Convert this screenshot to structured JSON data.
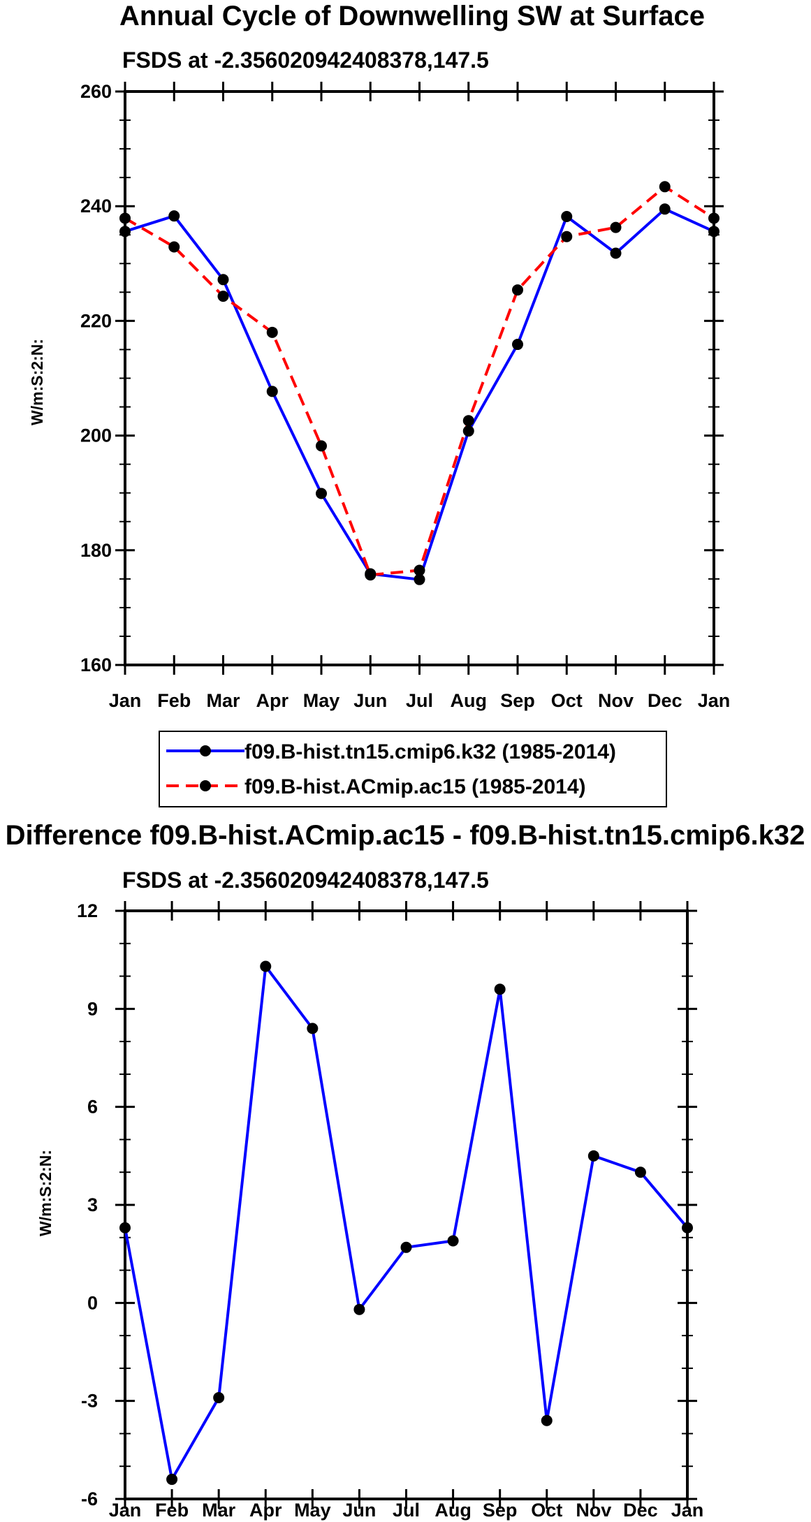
{
  "chart_data": [
    {
      "type": "line",
      "title": "Annual Cycle of Downwelling SW at Surface",
      "subtitle": "FSDS at -2.356020942408378,147.5",
      "ylabel": "W/m:S:2:N:",
      "xlabel": "",
      "categories": [
        "Jan",
        "Feb",
        "Mar",
        "Apr",
        "May",
        "Jun",
        "Jul",
        "Aug",
        "Sep",
        "Oct",
        "Nov",
        "Dec",
        "Jan"
      ],
      "y_ticks": [
        "160",
        "180",
        "200",
        "220",
        "240",
        "260"
      ],
      "ylim": [
        160,
        260
      ],
      "series": [
        {
          "name": "f09.B-hist.tn15.cmip6.k32 (1985-2014)",
          "color": "#0000ff",
          "dash": "solid",
          "values": [
            235.6,
            238.3,
            227.2,
            207.7,
            189.9,
            175.9,
            174.9,
            200.8,
            215.9,
            238.2,
            231.8,
            239.5,
            235.6
          ]
        },
        {
          "name": "f09.B-hist.ACmip.ac15 (1985-2014)",
          "color": "#ff0000",
          "dash": "dashed",
          "values": [
            237.9,
            232.9,
            224.3,
            218.0,
            198.2,
            175.7,
            176.5,
            202.6,
            225.4,
            234.7,
            236.3,
            243.4,
            237.9
          ]
        }
      ]
    },
    {
      "type": "line",
      "title": "Difference f09.B-hist.ACmip.ac15 - f09.B-hist.tn15.cmip6.k32",
      "subtitle": "FSDS at -2.356020942408378,147.5",
      "ylabel": "W/m:S:2:N:",
      "xlabel": "",
      "categories": [
        "Jan",
        "Feb",
        "Mar",
        "Apr",
        "May",
        "Jun",
        "Jul",
        "Aug",
        "Sep",
        "Oct",
        "Nov",
        "Dec",
        "Jan"
      ],
      "y_ticks": [
        "-6",
        "-3",
        "0",
        "3",
        "6",
        "9",
        "12"
      ],
      "ylim": [
        -6,
        12
      ],
      "series": [
        {
          "name": "difference",
          "color": "#0000ff",
          "dash": "solid",
          "values": [
            2.3,
            -5.4,
            -2.9,
            10.3,
            8.4,
            -0.2,
            1.7,
            1.9,
            9.6,
            -3.6,
            4.5,
            4.0,
            2.3
          ]
        }
      ]
    }
  ]
}
